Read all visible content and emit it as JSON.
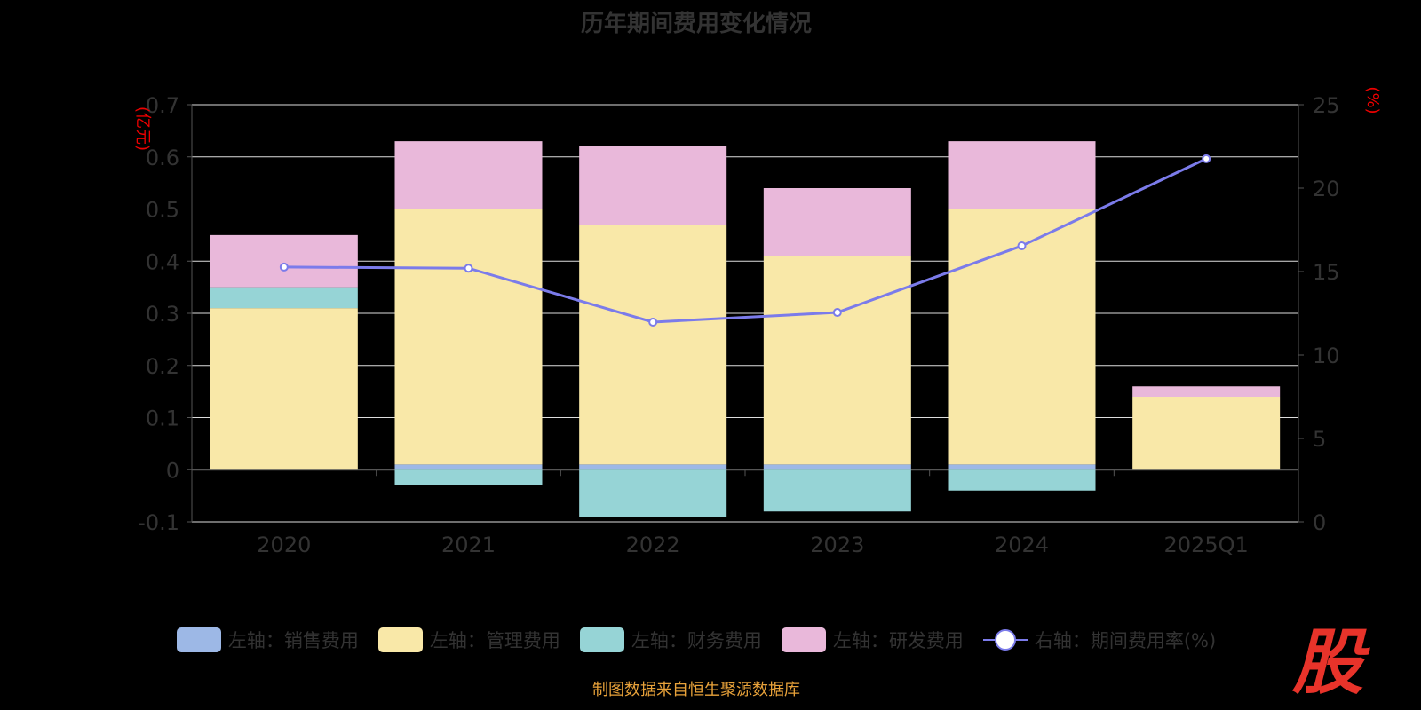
{
  "chart_data": {
    "type": "bar",
    "title": "历年期间费用变化情况",
    "categories": [
      "2020",
      "2021",
      "2022",
      "2023",
      "2024",
      "2025Q1"
    ],
    "y_left": {
      "label": "(亿元)",
      "range": [
        -0.1,
        0.7
      ],
      "ticks": [
        "-0.1",
        "0",
        "0.1",
        "0.2",
        "0.3",
        "0.4",
        "0.5",
        "0.6",
        "0.7"
      ]
    },
    "y_right": {
      "label": "(%)",
      "range": [
        0,
        25
      ],
      "ticks": [
        "0",
        "5",
        "10",
        "15",
        "20",
        "25"
      ]
    },
    "series": [
      {
        "name": "左轴：销售费用",
        "type": "bar",
        "color": "#9db8e6",
        "values": [
          0.0,
          0.01,
          0.01,
          0.01,
          0.01,
          0.0
        ]
      },
      {
        "name": "左轴：管理费用",
        "type": "bar",
        "color": "#f9e8a8",
        "values": [
          0.31,
          0.49,
          0.46,
          0.4,
          0.49,
          0.14
        ]
      },
      {
        "name": "左轴：财务费用",
        "type": "bar",
        "color": "#96d4d6",
        "values": [
          0.04,
          -0.03,
          -0.09,
          -0.08,
          -0.04,
          0.0
        ]
      },
      {
        "name": "左轴：研发费用",
        "type": "bar",
        "color": "#e9b8da",
        "values": [
          0.1,
          0.13,
          0.15,
          0.13,
          0.13,
          0.02
        ]
      },
      {
        "name": "右轴：期间费用率(%)",
        "type": "line",
        "color": "#7b7bea",
        "values": [
          15.27,
          15.2,
          11.97,
          12.55,
          16.54,
          21.76
        ]
      }
    ],
    "legend": "bottom",
    "grid": true
  },
  "source": "制图数据来自恒生聚源数据库",
  "logo_text": "股"
}
